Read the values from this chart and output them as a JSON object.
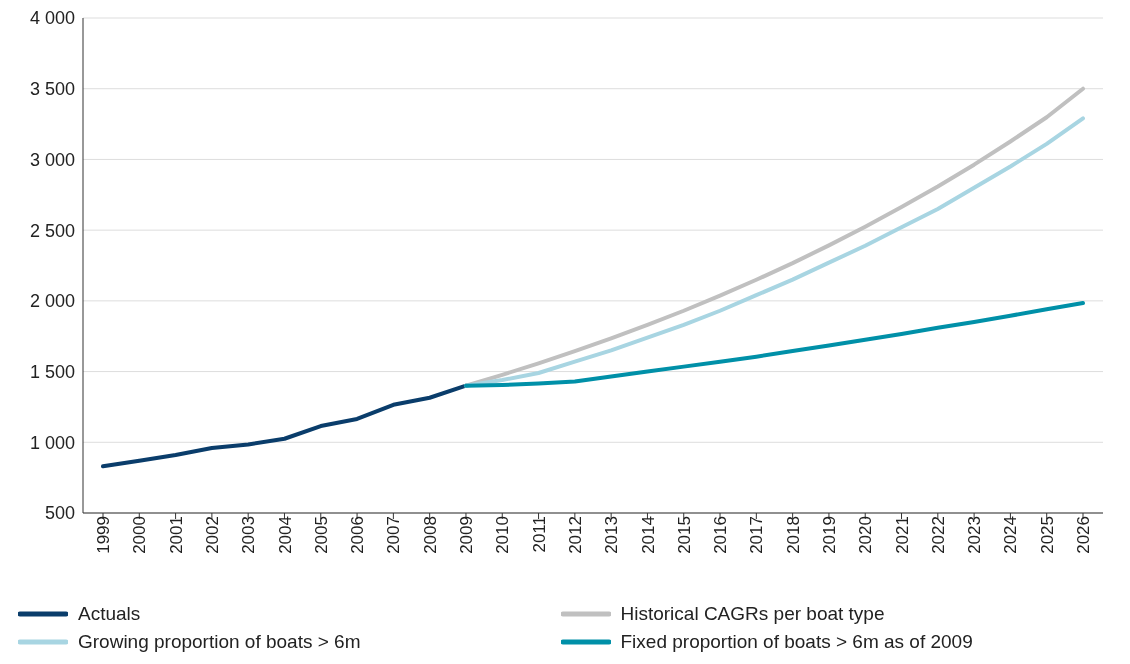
{
  "chart_data": {
    "type": "line",
    "categories": [
      "1999",
      "2000",
      "2001",
      "2002",
      "2003",
      "2004",
      "2005",
      "2006",
      "2007",
      "2008",
      "2009",
      "2010",
      "2011",
      "2012",
      "2013",
      "2014",
      "2015",
      "2016",
      "2017",
      "2018",
      "2019",
      "2020",
      "2021",
      "2022",
      "2023",
      "2024",
      "2025",
      "2026"
    ],
    "series": [
      {
        "name": "Actuals",
        "color": "#0a3d6b",
        "values": [
          830,
          870,
          910,
          960,
          985,
          1025,
          1115,
          1165,
          1265,
          1315,
          1400,
          null,
          null,
          null,
          null,
          null,
          null,
          null,
          null,
          null,
          null,
          null,
          null,
          null,
          null,
          null,
          null,
          null
        ]
      },
      {
        "name": "Historical CAGRs per boat type",
        "color": "#c0c0c0",
        "values": [
          null,
          null,
          null,
          null,
          null,
          null,
          null,
          null,
          null,
          null,
          1400,
          1477,
          1558,
          1644,
          1735,
          1830,
          1930,
          2037,
          2149,
          2267,
          2392,
          2524,
          2663,
          2809,
          2963,
          3127,
          3298,
          3500
        ]
      },
      {
        "name": "Growing proportion of boats > 6m",
        "color": "#a8d5e2",
        "values": [
          null,
          null,
          null,
          null,
          null,
          null,
          null,
          null,
          null,
          null,
          1400,
          1440,
          1490,
          1570,
          1650,
          1740,
          1830,
          1930,
          2040,
          2150,
          2270,
          2390,
          2520,
          2650,
          2800,
          2950,
          3110,
          3290
        ]
      },
      {
        "name": "Fixed proportion of boats > 6m as of 2009",
        "color": "#0090a8",
        "values": [
          null,
          null,
          null,
          null,
          null,
          null,
          null,
          null,
          null,
          null,
          1400,
          1405,
          1415,
          1430,
          1465,
          1500,
          1535,
          1570,
          1605,
          1645,
          1685,
          1725,
          1765,
          1810,
          1850,
          1895,
          1940,
          1985
        ]
      }
    ],
    "ylim": [
      500,
      4000
    ],
    "yticks": [
      {
        "value": 500,
        "label": "500"
      },
      {
        "value": 1000,
        "label": "1 000"
      },
      {
        "value": 1500,
        "label": "1 500"
      },
      {
        "value": 2000,
        "label": "2 000"
      },
      {
        "value": 2500,
        "label": "2 500"
      },
      {
        "value": 3000,
        "label": "3 000"
      },
      {
        "value": 3500,
        "label": "3 500"
      },
      {
        "value": 4000,
        "label": "4 000"
      }
    ],
    "grid": "y",
    "legend": "bottom",
    "marker": "none",
    "line_style": "solid"
  }
}
